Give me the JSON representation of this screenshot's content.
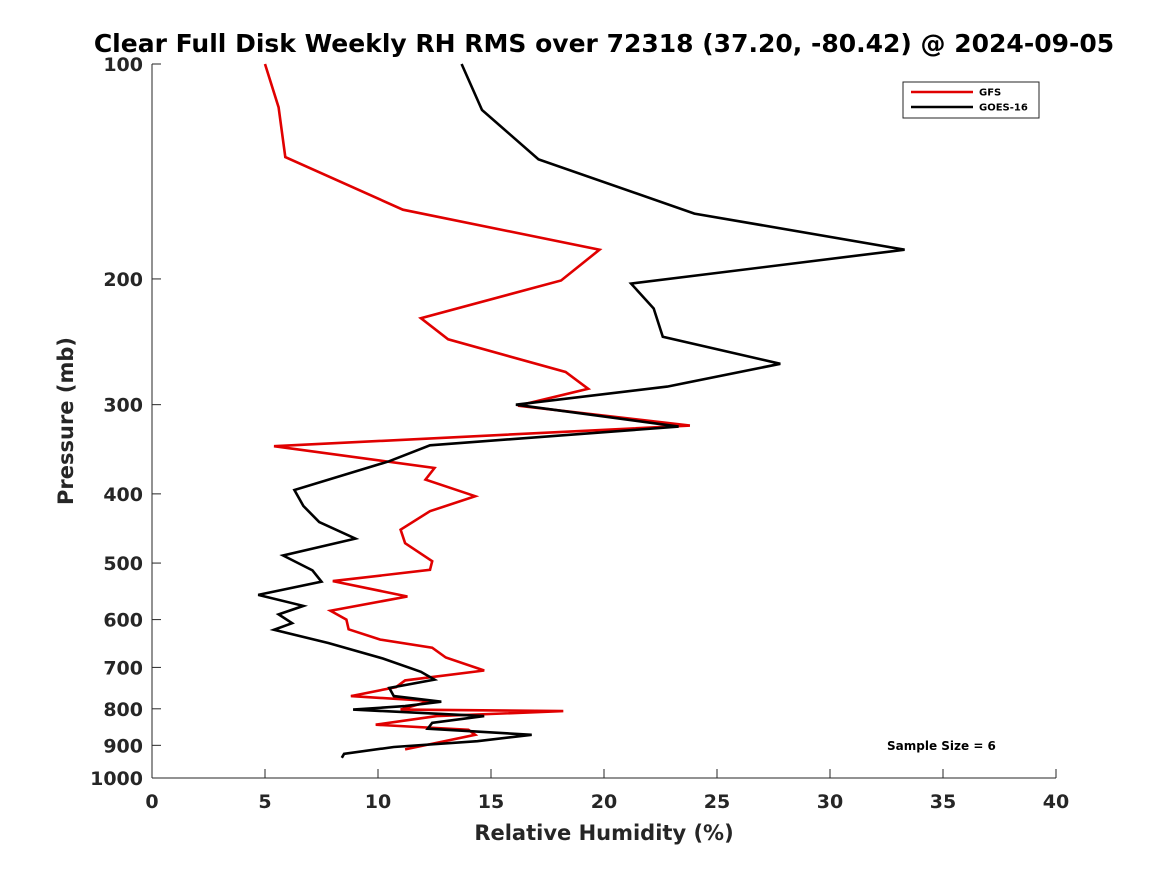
{
  "chart_data": {
    "type": "line",
    "title": "Clear Full Disk Weekly RH RMS over 72318 (37.20, -80.42) @ 2024-09-05",
    "xlabel": "Relative Humidity (%)",
    "ylabel": "Pressure (mb)",
    "xlim": [
      0,
      40
    ],
    "ylim": [
      100,
      1000
    ],
    "yscale": "log",
    "y_reversed": true,
    "xticks": [
      0,
      5,
      10,
      15,
      20,
      25,
      30,
      35,
      40
    ],
    "yticks": [
      100,
      200,
      300,
      400,
      500,
      600,
      700,
      800,
      900,
      1000
    ],
    "grid": false,
    "legend_position": "top-right",
    "annotation": "Sample Size = 6",
    "series": [
      {
        "name": "GFS",
        "color": "#e00000",
        "points": [
          [
            5.0,
            100
          ],
          [
            5.6,
            115
          ],
          [
            5.9,
            135
          ],
          [
            11.1,
            160
          ],
          [
            19.8,
            182
          ],
          [
            18.1,
            201
          ],
          [
            11.9,
            227
          ],
          [
            13.1,
            243
          ],
          [
            18.3,
            270
          ],
          [
            19.3,
            285
          ],
          [
            16.2,
            301
          ],
          [
            23.8,
            321
          ],
          [
            5.4,
            343
          ],
          [
            12.5,
            368
          ],
          [
            12.1,
            382
          ],
          [
            14.3,
            403
          ],
          [
            12.3,
            423
          ],
          [
            11.0,
            449
          ],
          [
            11.2,
            469
          ],
          [
            12.4,
            497
          ],
          [
            12.3,
            511
          ],
          [
            8.0,
            530
          ],
          [
            11.3,
            557
          ],
          [
            7.9,
            583
          ],
          [
            8.6,
            600
          ],
          [
            8.7,
            619
          ],
          [
            10.1,
            640
          ],
          [
            12.4,
            657
          ],
          [
            13.0,
            678
          ],
          [
            14.7,
            707
          ],
          [
            11.2,
            730
          ],
          [
            10.8,
            746
          ],
          [
            8.8,
            768
          ],
          [
            12.3,
            780
          ],
          [
            11.0,
            802
          ],
          [
            18.2,
            806
          ],
          [
            12.6,
            819
          ],
          [
            9.9,
            842
          ],
          [
            14.0,
            856
          ],
          [
            14.3,
            870
          ],
          [
            12.8,
            890
          ],
          [
            11.2,
            912
          ]
        ]
      },
      {
        "name": "GOES-16",
        "color": "#000000",
        "points": [
          [
            13.7,
            100
          ],
          [
            14.6,
            116
          ],
          [
            17.1,
            136
          ],
          [
            24.0,
            162
          ],
          [
            33.3,
            182
          ],
          [
            21.2,
            203
          ],
          [
            22.2,
            220
          ],
          [
            22.6,
            241
          ],
          [
            27.8,
            263
          ],
          [
            22.8,
            283
          ],
          [
            16.1,
            300
          ],
          [
            23.3,
            322
          ],
          [
            12.3,
            342
          ],
          [
            10.5,
            360
          ],
          [
            6.3,
            395
          ],
          [
            6.7,
            416
          ],
          [
            7.4,
            438
          ],
          [
            9.0,
            462
          ],
          [
            5.8,
            488
          ],
          [
            7.1,
            512
          ],
          [
            7.5,
            531
          ],
          [
            4.7,
            554
          ],
          [
            6.7,
            574
          ],
          [
            5.6,
            590
          ],
          [
            6.2,
            607
          ],
          [
            5.4,
            620
          ],
          [
            7.8,
            647
          ],
          [
            10.2,
            680
          ],
          [
            11.9,
            710
          ],
          [
            12.5,
            728
          ],
          [
            10.5,
            748
          ],
          [
            10.7,
            768
          ],
          [
            12.8,
            782
          ],
          [
            11.2,
            793
          ],
          [
            8.9,
            802
          ],
          [
            14.7,
            819
          ],
          [
            12.4,
            837
          ],
          [
            12.2,
            853
          ],
          [
            16.8,
            870
          ],
          [
            14.4,
            888
          ],
          [
            10.7,
            905
          ],
          [
            8.5,
            925
          ],
          [
            8.4,
            937
          ]
        ]
      }
    ]
  }
}
